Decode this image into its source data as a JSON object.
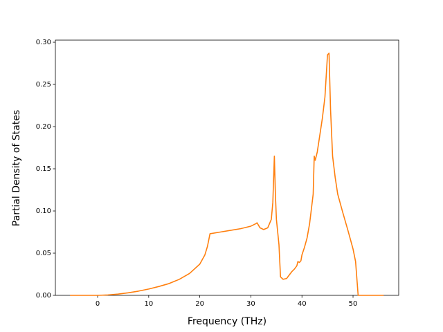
{
  "chart_data": {
    "type": "line",
    "xlabel": "Frequency (THz)",
    "ylabel": "Partial Density of States",
    "x": [
      -5.4,
      0,
      2,
      4,
      6,
      8,
      10,
      12,
      14,
      16,
      18,
      20,
      21,
      21.5,
      22,
      24,
      26,
      28,
      30,
      31,
      31.2,
      31.8,
      32.5,
      33.3,
      34,
      34.3,
      34.6,
      34.8,
      35,
      35.5,
      35.8,
      36.3,
      37,
      37.5,
      38,
      38.5,
      39,
      39.2,
      39.5,
      39.8,
      40,
      40.5,
      41,
      41.5,
      42,
      42.2,
      42.4,
      42.6,
      43,
      43.5,
      44,
      44.5,
      45,
      45.3,
      45.6,
      46,
      46.5,
      47,
      48,
      49,
      50,
      50.5,
      51,
      56
    ],
    "series": [
      {
        "color": "#ff7f0e",
        "values": [
          0,
          0,
          0.0005,
          0.0015,
          0.003,
          0.005,
          0.0075,
          0.0105,
          0.014,
          0.019,
          0.026,
          0.037,
          0.048,
          0.058,
          0.073,
          0.075,
          0.077,
          0.079,
          0.082,
          0.085,
          0.086,
          0.08,
          0.078,
          0.08,
          0.09,
          0.11,
          0.165,
          0.12,
          0.09,
          0.06,
          0.022,
          0.019,
          0.02,
          0.024,
          0.028,
          0.031,
          0.035,
          0.04,
          0.039,
          0.041,
          0.048,
          0.057,
          0.068,
          0.085,
          0.11,
          0.12,
          0.165,
          0.16,
          0.17,
          0.19,
          0.21,
          0.235,
          0.285,
          0.287,
          0.22,
          0.165,
          0.14,
          0.12,
          0.098,
          0.077,
          0.055,
          0.04,
          0,
          0
        ]
      }
    ],
    "xlim": [
      -8.27,
      58.94
    ],
    "ylim": [
      0,
      0.3025
    ],
    "xticks": [
      0,
      10,
      20,
      30,
      40,
      50
    ],
    "yticks": [
      {
        "value": 0,
        "label": "0.00"
      },
      0.05,
      {
        "value": 0.1,
        "label": "0.10"
      },
      0.15,
      {
        "value": 0.2,
        "label": "0.20"
      },
      0.25,
      {
        "value": 0.3,
        "label": "0.30"
      }
    ],
    "grid": false
  }
}
